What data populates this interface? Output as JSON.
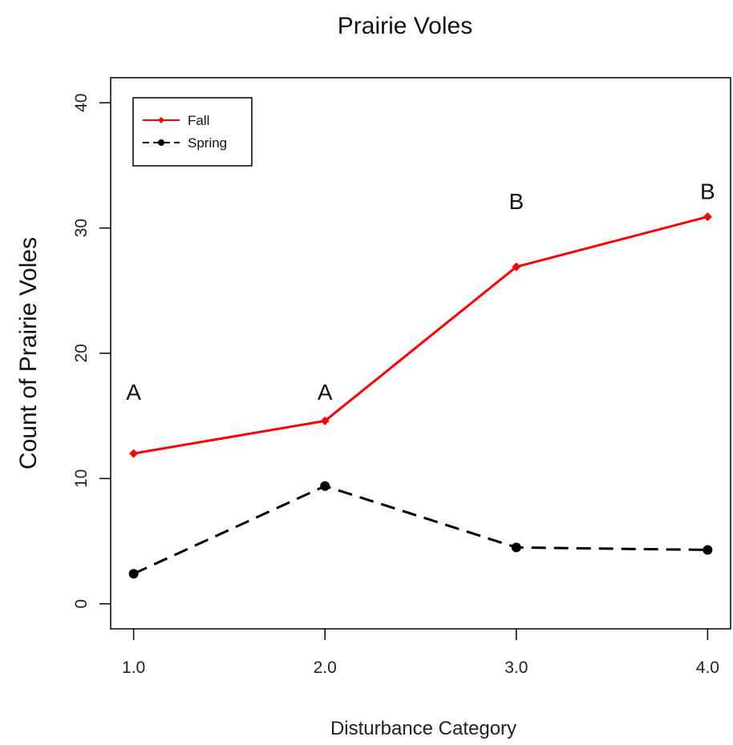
{
  "chart_data": {
    "type": "line",
    "title": "Prairie Voles",
    "xlabel": "Disturbance Category",
    "ylabel": "Count of Prairie Voles",
    "x": [
      1.0,
      2.0,
      3.0,
      4.0
    ],
    "x_tick_labels": [
      "1.0",
      "2.0",
      "3.0",
      "4.0"
    ],
    "y_ticks": [
      0,
      10,
      20,
      30,
      40
    ],
    "xlim": [
      0.88,
      4.12
    ],
    "ylim": [
      -2,
      42
    ],
    "grid": false,
    "legend_position": "top-left",
    "series": [
      {
        "name": "Fall",
        "values": [
          12.0,
          14.6,
          26.9,
          30.9
        ],
        "color": "#ff0000",
        "line_style": "solid",
        "marker": "diamond"
      },
      {
        "name": "Spring",
        "values": [
          2.4,
          9.4,
          4.5,
          4.3
        ],
        "color": "#000000",
        "line_style": "dashed",
        "marker": "circle"
      }
    ],
    "annotations": [
      {
        "text": "A",
        "x": 1.0,
        "y": 16.3
      },
      {
        "text": "A",
        "x": 2.0,
        "y": 16.3
      },
      {
        "text": "B",
        "x": 3.0,
        "y": 31.5
      },
      {
        "text": "B",
        "x": 4.0,
        "y": 32.3
      }
    ]
  }
}
